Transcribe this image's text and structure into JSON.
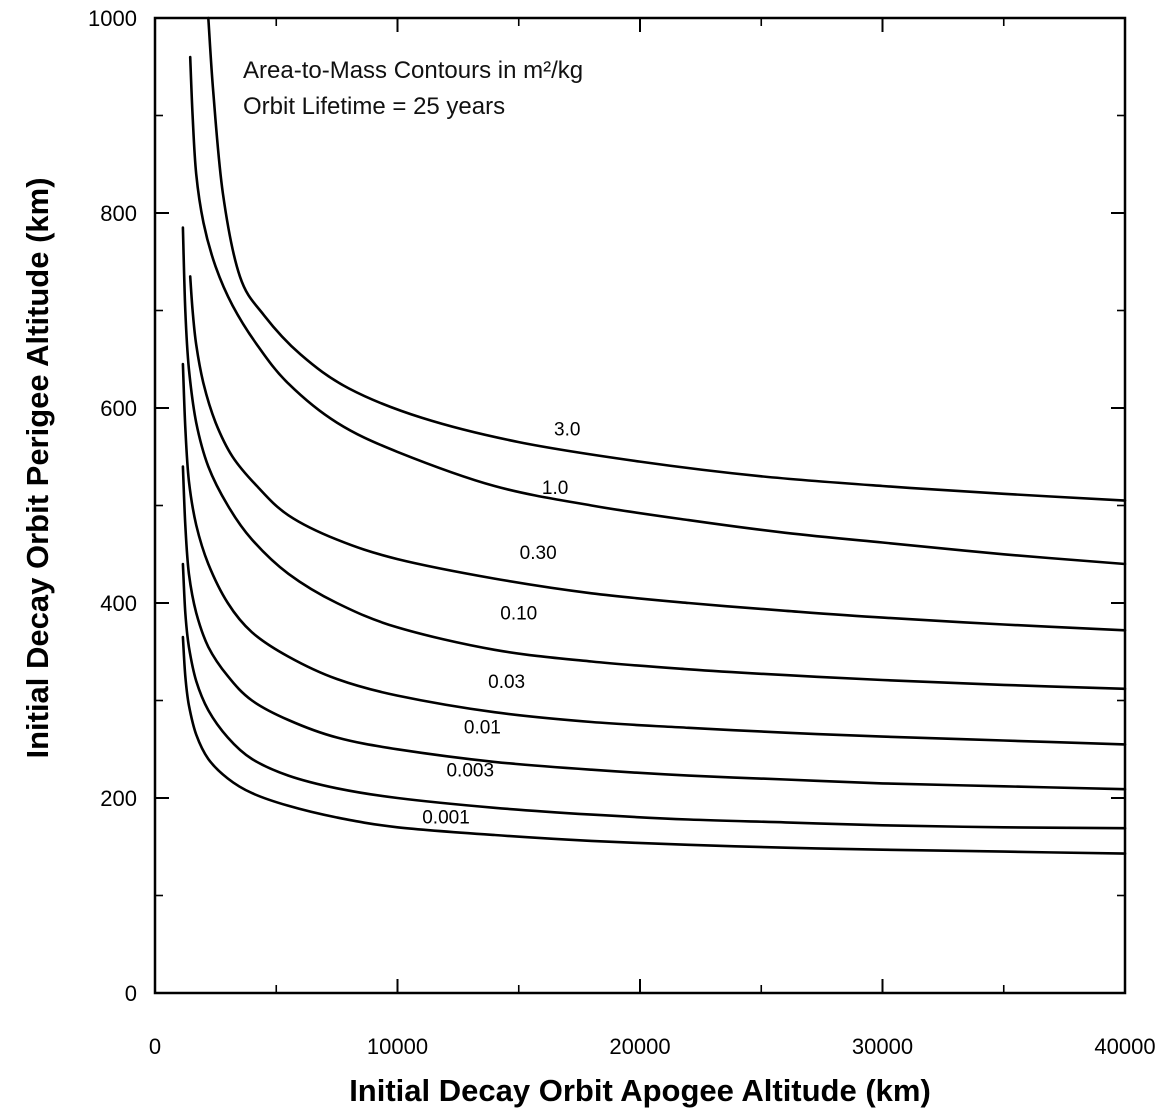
{
  "chart_data": {
    "type": "line",
    "title": "",
    "annotations": [
      "Area-to-Mass Contours in m²/kg",
      "Orbit Lifetime = 25 years"
    ],
    "xlabel": "Initial Decay Orbit Apogee Altitude (km)",
    "ylabel": "Initial Decay Orbit Perigee Altitude (km)",
    "xlim": [
      0,
      40000
    ],
    "ylim": [
      0,
      1000
    ],
    "xticks": [
      0,
      10000,
      20000,
      30000,
      40000
    ],
    "xtick_labels": [
      "0",
      "10000",
      "20000",
      "30000",
      "40000"
    ],
    "yticks": [
      0,
      200,
      400,
      600,
      800,
      1000
    ],
    "ytick_labels": [
      "0",
      "200",
      "400",
      "600",
      "800",
      "1000"
    ],
    "grid": false,
    "legend": "none",
    "series": [
      {
        "name": "3.0",
        "label_at": [
          17000,
          572
        ],
        "x": [
          2200,
          2400,
          2800,
          3500,
          4500,
          6000,
          8000,
          11000,
          15000,
          20000,
          25000,
          30000,
          35000,
          40000
        ],
        "y": [
          1000,
          925,
          820,
          735,
          695,
          655,
          620,
          590,
          565,
          545,
          530,
          520,
          512,
          505
        ]
      },
      {
        "name": "1.0",
        "label_at": [
          16500,
          512
        ],
        "x": [
          1450,
          1550,
          1700,
          2000,
          2500,
          3200,
          4200,
          5500,
          7500,
          10000,
          14000,
          18000,
          22000,
          26000,
          30000,
          35000,
          40000
        ],
        "y": [
          960,
          900,
          840,
          790,
          745,
          705,
          665,
          625,
          585,
          555,
          520,
          500,
          485,
          472,
          462,
          450,
          440
        ]
      },
      {
        "name": "0.30",
        "label_at": [
          15800,
          445
        ],
        "x": [
          1450,
          1550,
          1700,
          2000,
          2500,
          3200,
          4200,
          5500,
          7500,
          10000,
          14000,
          18000,
          22000,
          26000,
          30000,
          35000,
          40000
        ],
        "y": [
          735,
          700,
          665,
          625,
          585,
          550,
          520,
          490,
          465,
          445,
          425,
          410,
          400,
          392,
          385,
          378,
          372
        ]
      },
      {
        "name": "0.10",
        "label_at": [
          15000,
          383
        ],
        "x": [
          1150,
          1250,
          1400,
          1700,
          2200,
          3000,
          4000,
          5500,
          7500,
          10000,
          14000,
          18000,
          22000,
          26000,
          30000,
          35000,
          40000
        ],
        "y": [
          785,
          700,
          640,
          585,
          540,
          500,
          465,
          430,
          400,
          375,
          352,
          340,
          332,
          326,
          321,
          316,
          312
        ]
      },
      {
        "name": "0.03",
        "label_at": [
          14500,
          313
        ],
        "x": [
          1150,
          1250,
          1400,
          1700,
          2200,
          3000,
          4000,
          5500,
          7500,
          10000,
          14000,
          18000,
          22000,
          26000,
          30000,
          35000,
          40000
        ],
        "y": [
          645,
          580,
          525,
          480,
          440,
          400,
          370,
          345,
          322,
          305,
          288,
          278,
          272,
          267,
          263,
          259,
          255
        ]
      },
      {
        "name": "0.01",
        "label_at": [
          13500,
          266
        ],
        "x": [
          1150,
          1250,
          1400,
          1700,
          2200,
          3000,
          4000,
          5500,
          7500,
          10000,
          14000,
          18000,
          22000,
          26000,
          30000,
          35000,
          40000
        ],
        "y": [
          540,
          480,
          430,
          390,
          355,
          325,
          300,
          280,
          262,
          250,
          237,
          229,
          223,
          219,
          215,
          212,
          209
        ]
      },
      {
        "name": "0.003",
        "label_at": [
          13000,
          222
        ],
        "x": [
          1150,
          1250,
          1400,
          1700,
          2200,
          3000,
          4000,
          5500,
          7500,
          10000,
          14000,
          18000,
          22000,
          26000,
          30000,
          35000,
          40000
        ],
        "y": [
          440,
          390,
          355,
          320,
          290,
          262,
          240,
          223,
          210,
          200,
          190,
          183,
          178,
          175,
          172,
          170,
          169
        ]
      },
      {
        "name": "0.001",
        "label_at": [
          12000,
          174
        ],
        "x": [
          1150,
          1250,
          1400,
          1700,
          2200,
          3000,
          4000,
          5500,
          7500,
          10000,
          14000,
          18000,
          22000,
          26000,
          30000,
          35000,
          40000
        ],
        "y": [
          365,
          325,
          295,
          265,
          240,
          220,
          205,
          192,
          180,
          170,
          162,
          156,
          152,
          149,
          147,
          145,
          143
        ]
      }
    ]
  }
}
